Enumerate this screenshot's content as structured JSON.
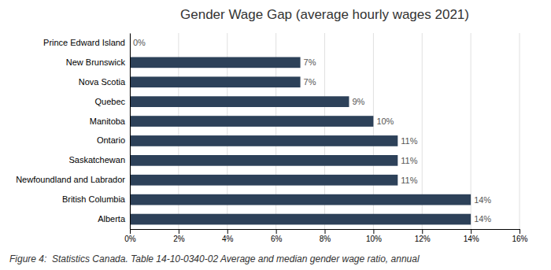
{
  "chart_data": {
    "type": "bar",
    "orientation": "horizontal",
    "title": "Gender Wage Gap (average hourly wages 2021)",
    "caption": "Figure 4:  Statistics Canada. Table 14-10-0340-02 Average and median gender wage ratio, annual",
    "categories": [
      "Prince Edward Island",
      "New Brunswick",
      "Nova Scotia",
      "Quebec",
      "Manitoba",
      "Ontario",
      "Saskatchewan",
      "Newfoundland and Labrador",
      "British Columbia",
      "Alberta"
    ],
    "values": [
      0,
      7,
      7,
      9,
      10,
      11,
      11,
      11,
      14,
      14
    ],
    "value_labels": [
      "0%",
      "7%",
      "7%",
      "9%",
      "10%",
      "11%",
      "11%",
      "11%",
      "14%",
      "14%"
    ],
    "data_labels": true,
    "color": "#2d4159",
    "xlim": [
      0,
      16
    ],
    "xticks": [
      {
        "value": 0,
        "label": "0%"
      },
      {
        "value": 2,
        "label": "2%"
      },
      {
        "value": 4,
        "label": "4%"
      },
      {
        "value": 6,
        "label": "6%"
      },
      {
        "value": 8,
        "label": "8%"
      },
      {
        "value": 10,
        "label": "10%"
      },
      {
        "value": 12,
        "label": "12%"
      },
      {
        "value": 14,
        "label": "14%"
      },
      {
        "value": 16,
        "label": "16%"
      }
    ],
    "grid": true
  }
}
